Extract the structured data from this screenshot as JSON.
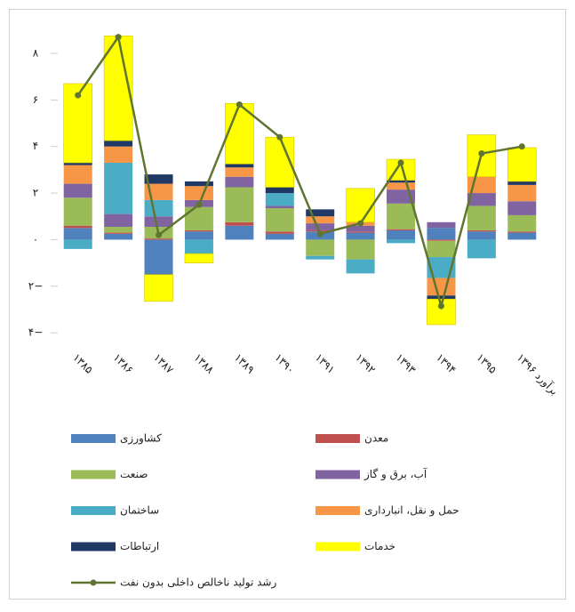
{
  "chart_data": {
    "type": "stacked_bar_line",
    "categories": [
      "۱۳۸۵",
      "۱۳۸۶",
      "۱۳۸۷",
      "۱۳۸۸",
      "۱۳۸۹",
      "۱۳۹۰",
      "۱۳۹۱",
      "۱۳۹۲",
      "۱۳۹۳",
      "۱۳۹۴",
      "۱۳۹۵",
      "برآورد ۱۳۹۶"
    ],
    "series": [
      {
        "name": "کشاورزی",
        "color": "#4f81bd",
        "values": [
          0.5,
          0.25,
          -1.5,
          0.35,
          0.6,
          0.25,
          0.35,
          0.3,
          0.4,
          0.5,
          0.35,
          0.3
        ]
      },
      {
        "name": "معدن",
        "color": "#c0504d",
        "values": [
          0.1,
          0.05,
          0.05,
          0.05,
          0.15,
          0.1,
          0.05,
          0.05,
          0.05,
          -0.05,
          0.05,
          0.05
        ]
      },
      {
        "name": "صنعت",
        "color": "#9bbb59",
        "values": [
          1.2,
          0.25,
          0.5,
          1.0,
          1.5,
          1.0,
          -0.7,
          -0.85,
          1.1,
          -0.7,
          1.05,
          0.7
        ]
      },
      {
        "name": "آب، برق و گاز",
        "color": "#8064a2",
        "values": [
          0.6,
          0.55,
          0.45,
          0.3,
          0.45,
          0.1,
          0.3,
          0.25,
          0.6,
          0.25,
          0.55,
          0.6
        ]
      },
      {
        "name": "ساختمان",
        "color": "#4bacc6",
        "values": [
          -0.4,
          2.2,
          0.7,
          -0.6,
          0,
          0.55,
          -0.15,
          -0.6,
          -0.15,
          -0.9,
          -0.8,
          0
        ]
      },
      {
        "name": "حمل و نقل، انبارداری",
        "color": "#f79646",
        "values": [
          0.8,
          0.7,
          0.7,
          0.6,
          0.4,
          0,
          0.3,
          0.15,
          0.3,
          -0.75,
          0.7,
          0.7
        ]
      },
      {
        "name": "ارتباطات",
        "color": "#1f3864",
        "values": [
          0.1,
          0.25,
          0.4,
          0.2,
          0.15,
          0.25,
          0.3,
          0,
          0.1,
          -0.15,
          0,
          0.15
        ]
      },
      {
        "name": "خدمات",
        "color": "#ffff00",
        "values": [
          3.4,
          4.5,
          -1.15,
          -0.4,
          2.6,
          2.15,
          0,
          1.45,
          0.9,
          -1.1,
          1.8,
          1.45
        ]
      }
    ],
    "line": {
      "name": "رشد تولید ناخالص داخلی بدون نفت",
      "color": "#5f7530",
      "values": [
        6.2,
        8.7,
        0.2,
        1.5,
        5.8,
        4.4,
        0.25,
        0.7,
        3.3,
        -2.85,
        3.7,
        4.0
      ]
    },
    "ylim": [
      -4.3,
      8.8
    ],
    "yticks": [
      {
        "value": -4,
        "label": "۴−"
      },
      {
        "value": -2,
        "label": "۲−"
      },
      {
        "value": 0,
        "label": "۰"
      },
      {
        "value": 2,
        "label": "۲"
      },
      {
        "value": 4,
        "label": "۴"
      },
      {
        "value": 6,
        "label": "۶"
      },
      {
        "value": 8,
        "label": "۸"
      }
    ]
  }
}
